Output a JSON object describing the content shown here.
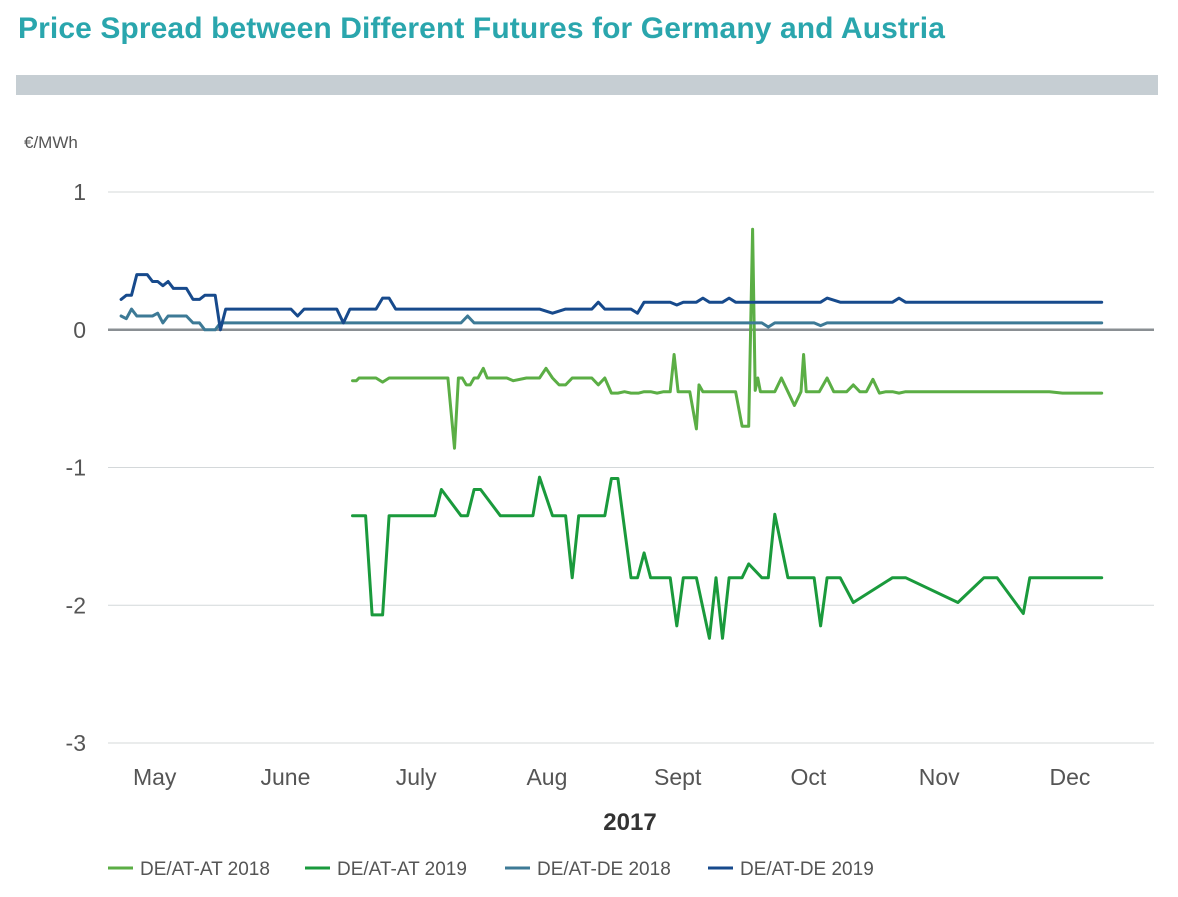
{
  "chart_data": {
    "type": "line",
    "title": "Price Spread between Different Futures for Germany and Austria",
    "ylabel": "€/MWh",
    "xlabel": "2017",
    "ylim": [
      -3,
      1
    ],
    "yticks": [
      1,
      0,
      -1,
      -2,
      -3
    ],
    "ytick_labels": [
      "1",
      "0",
      "-1",
      "-2",
      "-3"
    ],
    "xlim": [
      0,
      8
    ],
    "xticks": [
      {
        "label": "May",
        "pos": 0.25
      },
      {
        "label": "June",
        "pos": 1.25
      },
      {
        "label": "July",
        "pos": 2.25
      },
      {
        "label": "Aug",
        "pos": 3.25
      },
      {
        "label": "Sept",
        "pos": 4.25
      },
      {
        "label": "Oct",
        "pos": 5.25
      },
      {
        "label": "Nov",
        "pos": 6.25
      },
      {
        "label": "Dec",
        "pos": 7.25
      }
    ],
    "zero_line": true,
    "grid": true,
    "legend_position": "bottom",
    "series": [
      {
        "name": "DE/AT-AT 2018",
        "color": "#5bae45",
        "x": [
          1.87,
          1.9,
          1.92,
          1.95,
          2.05,
          2.1,
          2.15,
          2.2,
          2.4,
          2.6,
          2.65,
          2.68,
          2.71,
          2.74,
          2.77,
          2.8,
          2.83,
          2.87,
          2.9,
          2.94,
          2.97,
          3.0,
          3.05,
          3.1,
          3.2,
          3.3,
          3.35,
          3.4,
          3.45,
          3.5,
          3.55,
          3.6,
          3.65,
          3.7,
          3.75,
          3.8,
          3.85,
          3.9,
          3.95,
          4.0,
          4.03,
          4.06,
          4.1,
          4.15,
          4.2,
          4.25,
          4.3,
          4.33,
          4.36,
          4.38,
          4.4,
          4.45,
          4.5,
          4.52,
          4.55,
          4.6,
          4.65,
          4.7,
          4.75,
          4.8,
          4.85,
          4.9,
          4.93,
          4.95,
          4.97,
          4.99,
          5.01,
          5.03,
          5.05,
          5.07,
          5.1,
          5.15,
          5.2,
          5.25,
          5.3,
          5.32,
          5.34,
          5.36,
          5.38,
          5.4,
          5.42,
          5.44,
          5.5,
          5.55,
          5.58,
          5.6,
          5.65,
          5.7,
          5.75,
          5.8,
          5.85,
          5.9,
          5.95,
          6.0,
          6.05,
          6.1,
          6.15,
          6.2,
          6.3,
          6.5,
          6.7,
          7.0,
          7.2,
          7.3,
          7.6
        ],
        "values": [
          -0.37,
          -0.37,
          -0.35,
          -0.35,
          -0.35,
          -0.38,
          -0.35,
          -0.35,
          -0.35,
          -0.35,
          -0.86,
          -0.35,
          -0.35,
          -0.4,
          -0.4,
          -0.35,
          -0.35,
          -0.28,
          -0.35,
          -0.35,
          -0.35,
          -0.35,
          -0.35,
          -0.37,
          -0.35,
          -0.35,
          -0.28,
          -0.35,
          -0.4,
          -0.4,
          -0.35,
          -0.35,
          -0.35,
          -0.35,
          -0.4,
          -0.35,
          -0.46,
          -0.46,
          -0.45,
          -0.46,
          -0.46,
          -0.46,
          -0.45,
          -0.45,
          -0.46,
          -0.45,
          -0.45,
          -0.18,
          -0.45,
          -0.45,
          -0.45,
          -0.45,
          -0.72,
          -0.4,
          -0.45,
          -0.45,
          -0.45,
          -0.45,
          -0.45,
          -0.45,
          -0.7,
          -0.7,
          0.73,
          -0.44,
          -0.35,
          -0.45,
          -0.45,
          -0.45,
          -0.45,
          -0.45,
          -0.45,
          -0.35,
          -0.45,
          -0.55,
          -0.45,
          -0.18,
          -0.45,
          -0.45,
          -0.45,
          -0.45,
          -0.45,
          -0.45,
          -0.35,
          -0.45,
          -0.45,
          -0.45,
          -0.45,
          -0.4,
          -0.45,
          -0.45,
          -0.36,
          -0.46,
          -0.45,
          -0.45,
          -0.46,
          -0.45,
          -0.45,
          -0.45,
          -0.45,
          -0.45,
          -0.45,
          -0.45,
          -0.45,
          -0.46,
          -0.46
        ]
      },
      {
        "name": "DE/AT-AT 2019",
        "color": "#1a9a3c",
        "x": [
          1.87,
          1.97,
          2.02,
          2.1,
          2.15,
          2.2,
          2.3,
          2.45,
          2.5,
          2.55,
          2.7,
          2.75,
          2.8,
          2.85,
          3.0,
          3.1,
          3.2,
          3.25,
          3.3,
          3.4,
          3.45,
          3.5,
          3.55,
          3.6,
          3.8,
          3.85,
          3.9,
          4.0,
          4.05,
          4.1,
          4.15,
          4.2,
          4.3,
          4.35,
          4.4,
          4.45,
          4.5,
          4.6,
          4.65,
          4.7,
          4.75,
          4.8,
          4.85,
          4.9,
          5.0,
          5.05,
          5.1,
          5.2,
          5.25,
          5.3,
          5.4,
          5.45,
          5.5,
          5.55,
          5.6,
          5.7,
          6.0,
          6.05,
          6.1,
          6.5,
          6.7,
          6.75,
          6.8,
          7.0,
          7.05,
          7.1,
          7.6
        ],
        "values": [
          -1.35,
          -1.35,
          -2.07,
          -2.07,
          -1.35,
          -1.35,
          -1.35,
          -1.35,
          -1.35,
          -1.16,
          -1.35,
          -1.35,
          -1.16,
          -1.16,
          -1.35,
          -1.35,
          -1.35,
          -1.35,
          -1.07,
          -1.35,
          -1.35,
          -1.35,
          -1.8,
          -1.35,
          -1.35,
          -1.08,
          -1.08,
          -1.8,
          -1.8,
          -1.62,
          -1.8,
          -1.8,
          -1.8,
          -2.15,
          -1.8,
          -1.8,
          -1.8,
          -2.24,
          -1.8,
          -2.24,
          -1.8,
          -1.8,
          -1.8,
          -1.7,
          -1.8,
          -1.8,
          -1.34,
          -1.8,
          -1.8,
          -1.8,
          -1.8,
          -2.15,
          -1.8,
          -1.8,
          -1.8,
          -1.98,
          -1.8,
          -1.8,
          -1.8,
          -1.98,
          -1.8,
          -1.8,
          -1.8,
          -2.06,
          -1.8,
          -1.8,
          -1.8
        ]
      },
      {
        "name": "DE/AT-DE 2018",
        "color": "#3d7a96",
        "x": [
          0.1,
          0.14,
          0.18,
          0.22,
          0.26,
          0.3,
          0.34,
          0.38,
          0.42,
          0.46,
          0.5,
          0.55,
          0.6,
          0.65,
          0.7,
          0.74,
          0.78,
          0.82,
          0.86,
          0.9,
          0.95,
          1.0,
          1.5,
          1.55,
          1.6,
          1.7,
          1.75,
          1.8,
          1.85,
          2.0,
          2.1,
          2.3,
          2.35,
          2.4,
          2.45,
          2.5,
          2.7,
          2.75,
          2.8,
          2.9,
          3.0,
          3.3,
          3.4,
          3.5,
          3.8,
          3.9,
          4.0,
          4.2,
          4.4,
          4.5,
          4.55,
          4.6,
          4.7,
          4.75,
          4.8,
          4.9,
          5.0,
          5.05,
          5.1,
          5.15,
          5.2,
          5.3,
          5.4,
          5.45,
          5.5,
          5.55,
          5.6,
          5.8,
          6.0,
          6.2,
          6.5,
          6.8,
          7.0,
          7.2,
          7.4,
          7.6
        ],
        "values": [
          0.1,
          0.08,
          0.15,
          0.1,
          0.1,
          0.1,
          0.1,
          0.12,
          0.05,
          0.1,
          0.1,
          0.1,
          0.1,
          0.05,
          0.05,
          0.0,
          0.0,
          0.0,
          0.05,
          0.05,
          0.05,
          0.05,
          0.05,
          0.05,
          0.05,
          0.05,
          0.05,
          0.05,
          0.05,
          0.05,
          0.05,
          0.05,
          0.05,
          0.05,
          0.05,
          0.05,
          0.05,
          0.1,
          0.05,
          0.05,
          0.05,
          0.05,
          0.05,
          0.05,
          0.05,
          0.05,
          0.05,
          0.05,
          0.05,
          0.05,
          0.05,
          0.05,
          0.05,
          0.05,
          0.05,
          0.05,
          0.05,
          0.02,
          0.05,
          0.05,
          0.05,
          0.05,
          0.05,
          0.03,
          0.05,
          0.05,
          0.05,
          0.05,
          0.05,
          0.05,
          0.05,
          0.05,
          0.05,
          0.05,
          0.05,
          0.05
        ]
      },
      {
        "name": "DE/AT-DE 2019",
        "color": "#174a8c",
        "x": [
          0.1,
          0.14,
          0.18,
          0.22,
          0.26,
          0.3,
          0.34,
          0.38,
          0.42,
          0.46,
          0.5,
          0.55,
          0.6,
          0.65,
          0.7,
          0.74,
          0.78,
          0.82,
          0.86,
          0.9,
          0.95,
          1.0,
          1.2,
          1.4,
          1.45,
          1.5,
          1.6,
          1.7,
          1.75,
          1.8,
          1.85,
          2.0,
          2.05,
          2.1,
          2.15,
          2.2,
          2.4,
          2.5,
          2.6,
          2.7,
          2.9,
          3.0,
          3.1,
          3.2,
          3.3,
          3.4,
          3.5,
          3.6,
          3.7,
          3.75,
          3.8,
          3.9,
          4.0,
          4.05,
          4.1,
          4.2,
          4.3,
          4.35,
          4.4,
          4.5,
          4.55,
          4.6,
          4.7,
          4.75,
          4.8,
          4.85,
          4.9,
          5.0,
          5.05,
          5.1,
          5.2,
          5.25,
          5.3,
          5.4,
          5.45,
          5.5,
          5.6,
          6.0,
          6.05,
          6.1,
          6.5,
          6.7,
          6.75,
          6.8,
          7.0,
          7.05,
          7.1,
          7.6
        ],
        "values": [
          0.22,
          0.25,
          0.25,
          0.4,
          0.4,
          0.4,
          0.35,
          0.35,
          0.32,
          0.35,
          0.3,
          0.3,
          0.3,
          0.22,
          0.22,
          0.25,
          0.25,
          0.25,
          0.0,
          0.15,
          0.15,
          0.15,
          0.15,
          0.15,
          0.1,
          0.15,
          0.15,
          0.15,
          0.15,
          0.05,
          0.15,
          0.15,
          0.15,
          0.23,
          0.23,
          0.15,
          0.15,
          0.15,
          0.15,
          0.15,
          0.15,
          0.15,
          0.15,
          0.15,
          0.15,
          0.12,
          0.15,
          0.15,
          0.15,
          0.2,
          0.15,
          0.15,
          0.15,
          0.12,
          0.2,
          0.2,
          0.2,
          0.18,
          0.2,
          0.2,
          0.23,
          0.2,
          0.2,
          0.23,
          0.2,
          0.2,
          0.2,
          0.2,
          0.2,
          0.2,
          0.2,
          0.2,
          0.2,
          0.2,
          0.2,
          0.23,
          0.2,
          0.2,
          0.23,
          0.2,
          0.2,
          0.2,
          0.2,
          0.2,
          0.2,
          0.2,
          0.2,
          0.2
        ]
      }
    ]
  }
}
